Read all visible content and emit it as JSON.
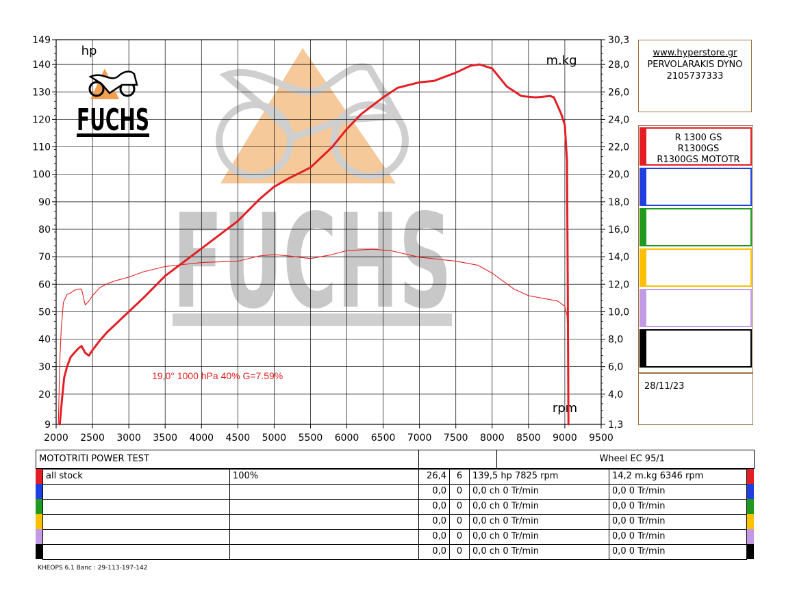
{
  "chart_data": {
    "type": "line",
    "xlabel": "rpm",
    "ylabel_left": "hp",
    "ylabel_right": "m.kg",
    "x_range": [
      2000,
      9500
    ],
    "x_ticks": [
      2000,
      2500,
      3000,
      3500,
      4000,
      4500,
      5000,
      5500,
      6000,
      6500,
      7000,
      7500,
      8000,
      8500,
      9000,
      9500
    ],
    "y_left_range": [
      9,
      149
    ],
    "y_left_ticks": [
      9,
      20,
      30,
      40,
      50,
      60,
      70,
      80,
      90,
      100,
      110,
      120,
      130,
      140,
      149
    ],
    "y_right_range": [
      1.3,
      30.3
    ],
    "y_right_ticks": [
      "1,3",
      "4,0",
      "6,0",
      "8,0",
      "10,0",
      "12,0",
      "14,0",
      "16,0",
      "18,0",
      "20,0",
      "22,0",
      "24,0",
      "26,0",
      "28,0",
      "30,3"
    ],
    "grid": true,
    "series": [
      {
        "name": "R 1300 GS",
        "axis": "left",
        "unit": "hp",
        "color": "#e31e24",
        "width": "thick",
        "x": [
          2050,
          2080,
          2110,
          2150,
          2200,
          2250,
          2300,
          2350,
          2400,
          2450,
          2500,
          2600,
          2700,
          2800,
          3000,
          3200,
          3500,
          4000,
          4500,
          4800,
          5000,
          5200,
          5500,
          5800,
          6000,
          6200,
          6500,
          6700,
          7000,
          7200,
          7500,
          7700,
          7825,
          8000,
          8200,
          8400,
          8600,
          8800,
          8850,
          8950,
          9000,
          9030,
          9040,
          9050
        ],
        "y": [
          9,
          18,
          26,
          30,
          33.5,
          35,
          36.5,
          37.5,
          35,
          34,
          36,
          39.5,
          42.5,
          45,
          50,
          55,
          63,
          73,
          83,
          91,
          95.5,
          98.5,
          102.5,
          110,
          116.5,
          122,
          128,
          131.5,
          133.5,
          134,
          137,
          139.5,
          140,
          138.5,
          132,
          128.5,
          128,
          128.5,
          128,
          122,
          118,
          105,
          60,
          9
        ]
      },
      {
        "name": "R 1300 GS",
        "axis": "right",
        "unit": "m.kg",
        "color": "#e31e24",
        "width": "thin",
        "x": [
          2030,
          2050,
          2070,
          2100,
          2150,
          2200,
          2250,
          2300,
          2350,
          2400,
          2450,
          2500,
          2600,
          2700,
          2800,
          3000,
          3200,
          3500,
          4000,
          4500,
          4800,
          5000,
          5200,
          5500,
          5800,
          6000,
          6346,
          6600,
          7000,
          7500,
          7800,
          8000,
          8300,
          8500,
          8800,
          8900,
          9000,
          9030,
          9040,
          9050
        ],
        "y": [
          1.3,
          6.0,
          8.5,
          10.5,
          11.1,
          11.2,
          11.4,
          11.5,
          11.5,
          10.3,
          10.6,
          11.0,
          11.6,
          11.9,
          12.1,
          12.4,
          12.8,
          13.2,
          13.5,
          13.6,
          14.0,
          14.1,
          14.0,
          13.8,
          14.1,
          14.4,
          14.5,
          14.4,
          13.9,
          13.6,
          13.3,
          12.7,
          11.5,
          11.0,
          10.7,
          10.6,
          10.2,
          9.5,
          8.0,
          1.3
        ]
      }
    ],
    "annotations": [
      "19,0°  1000 hPa  40%   G=7.59%"
    ]
  },
  "logo": {
    "text": "FUCHS",
    "watermark_text": "FUCHS"
  },
  "info": {
    "url": "www.hyperstore.gr",
    "line2": "PERVOLARAKIS DYNO",
    "line3": "2105737333"
  },
  "legend": [
    {
      "color": "#e31e24",
      "lines": [
        "R 1300 GS",
        "R1300GS",
        "R1300GS MOTOTR"
      ]
    },
    {
      "color": "#1f3fe0",
      "lines": []
    },
    {
      "color": "#1f9a1f",
      "lines": []
    },
    {
      "color": "#ffc000",
      "lines": []
    },
    {
      "color": "#c39ae6",
      "lines": []
    },
    {
      "color": "#000000",
      "lines": []
    }
  ],
  "date": "28/11/23",
  "table": {
    "title": "MOTOTRITI POWER TEST",
    "wheel": "Wheel EC 95/1",
    "rows": [
      {
        "color": "#e31e24",
        "label": "all stock",
        "pct": "100%",
        "v1": "26,4",
        "v2": "6",
        "power": "139,5 hp 7825 rpm",
        "torque": "14,2 m.kg 6346 rpm"
      },
      {
        "color": "#1f3fe0",
        "label": "",
        "pct": "",
        "v1": "0,0",
        "v2": "0",
        "power": "0,0 ch 0 Tr/min",
        "torque": "0,0  0 Tr/min"
      },
      {
        "color": "#1f9a1f",
        "label": "",
        "pct": "",
        "v1": "0,0",
        "v2": "0",
        "power": "0,0 ch 0 Tr/min",
        "torque": "0,0  0 Tr/min"
      },
      {
        "color": "#ffc000",
        "label": "",
        "pct": "",
        "v1": "0,0",
        "v2": "0",
        "power": "0,0 ch 0 Tr/min",
        "torque": "0,0  0 Tr/min"
      },
      {
        "color": "#c39ae6",
        "label": "",
        "pct": "",
        "v1": "0,0",
        "v2": "0",
        "power": "0,0 ch 0 Tr/min",
        "torque": "0,0  0 Tr/min"
      },
      {
        "color": "#000000",
        "label": "",
        "pct": "",
        "v1": "0,0",
        "v2": "0",
        "power": "0,0 ch 0 Tr/min",
        "torque": "0,0  0 Tr/min"
      }
    ]
  },
  "footer": "KHEOPS 6.1  Banc : 29-113-197-142"
}
